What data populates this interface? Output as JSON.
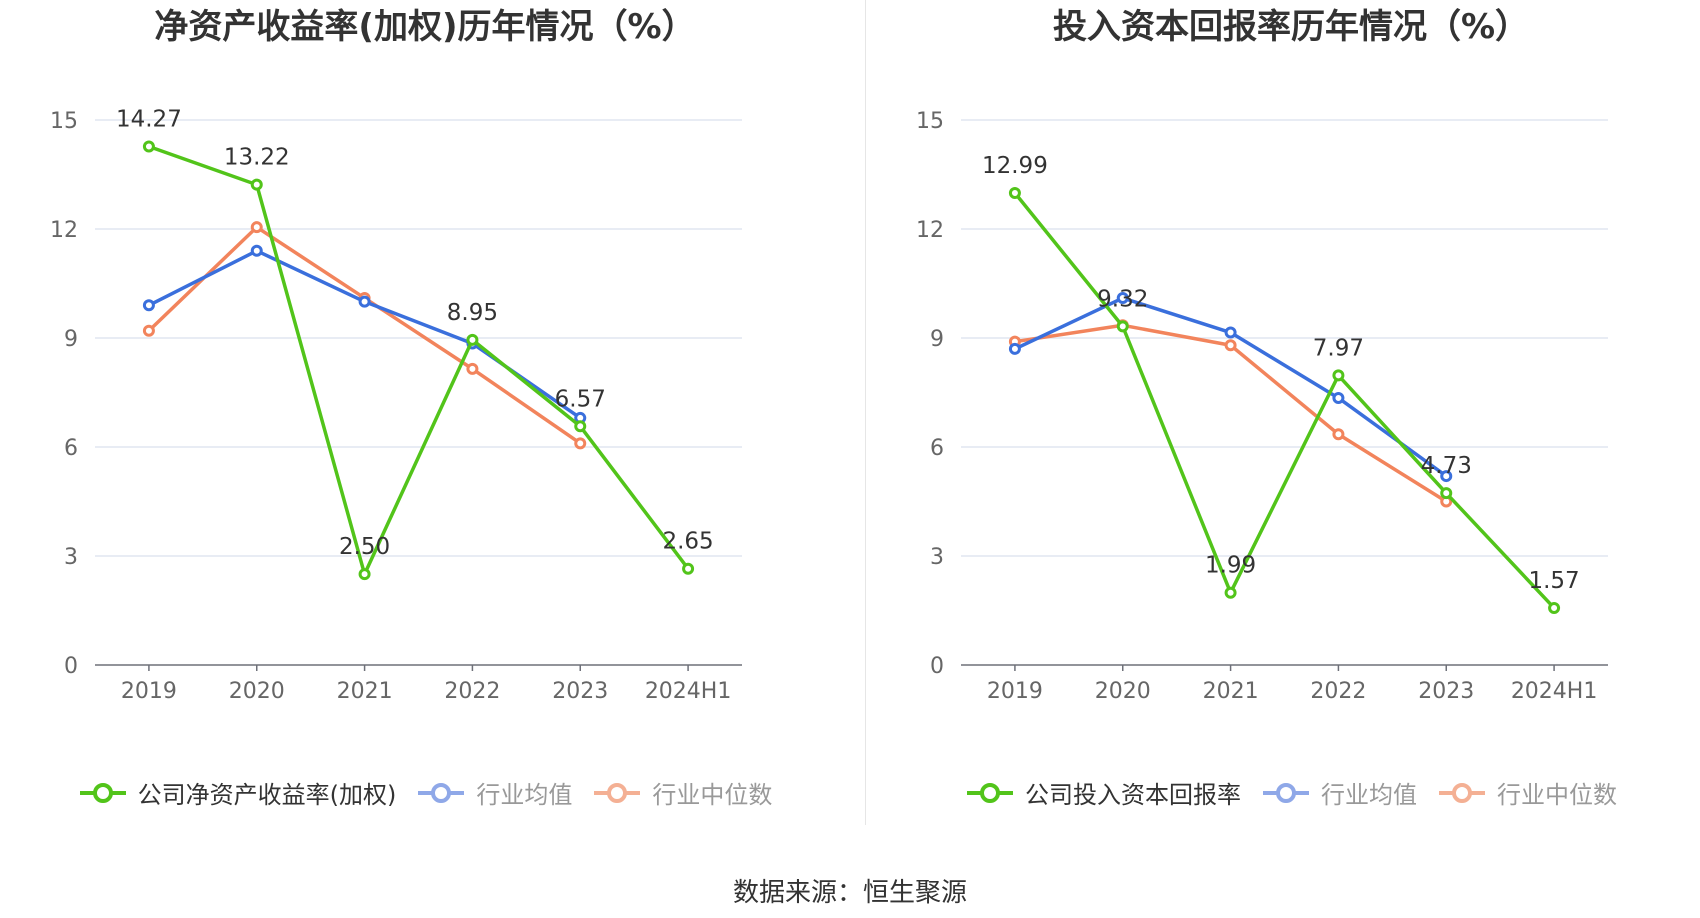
{
  "source_label": "数据来源：恒生聚源",
  "colors": {
    "company": "#52c41a",
    "avg": "#3a6fdc",
    "median": "#f2845c",
    "legend_avg": "#8fa8e8",
    "legend_median": "#f4b094"
  },
  "chart_data": [
    {
      "type": "line",
      "title": "净资产收益率(加权)历年情况（%）",
      "categories": [
        "2019",
        "2020",
        "2021",
        "2022",
        "2023",
        "2024H1"
      ],
      "ylim": [
        0,
        15
      ],
      "yticks": [
        "0",
        "3",
        "6",
        "9",
        "12",
        "15"
      ],
      "grid": true,
      "legend_position": "bottom",
      "series": [
        {
          "name": "公司净资产收益率(加权)",
          "values": [
            14.27,
            13.22,
            2.5,
            8.95,
            6.57,
            2.65
          ],
          "labels": [
            "14.27",
            "13.22",
            "2.50",
            "8.95",
            "6.57",
            "2.65"
          ]
        },
        {
          "name": "行业均值",
          "values": [
            9.9,
            11.4,
            10.0,
            8.85,
            6.8,
            null
          ]
        },
        {
          "name": "行业中位数",
          "values": [
            9.2,
            12.05,
            10.1,
            8.15,
            6.1,
            null
          ]
        }
      ]
    },
    {
      "type": "line",
      "title": "投入资本回报率历年情况（%）",
      "categories": [
        "2019",
        "2020",
        "2021",
        "2022",
        "2023",
        "2024H1"
      ],
      "ylim": [
        0,
        15
      ],
      "yticks": [
        "0",
        "3",
        "6",
        "9",
        "12",
        "15"
      ],
      "grid": true,
      "legend_position": "bottom",
      "series": [
        {
          "name": "公司投入资本回报率",
          "values": [
            12.99,
            9.32,
            1.99,
            7.97,
            4.73,
            1.57
          ],
          "labels": [
            "12.99",
            "9.32",
            "1.99",
            "7.97",
            "4.73",
            "1.57"
          ]
        },
        {
          "name": "行业均值",
          "values": [
            8.7,
            10.1,
            9.15,
            7.35,
            5.2,
            null
          ]
        },
        {
          "name": "行业中位数",
          "values": [
            8.9,
            9.35,
            8.8,
            6.35,
            4.5,
            null
          ]
        }
      ]
    }
  ]
}
